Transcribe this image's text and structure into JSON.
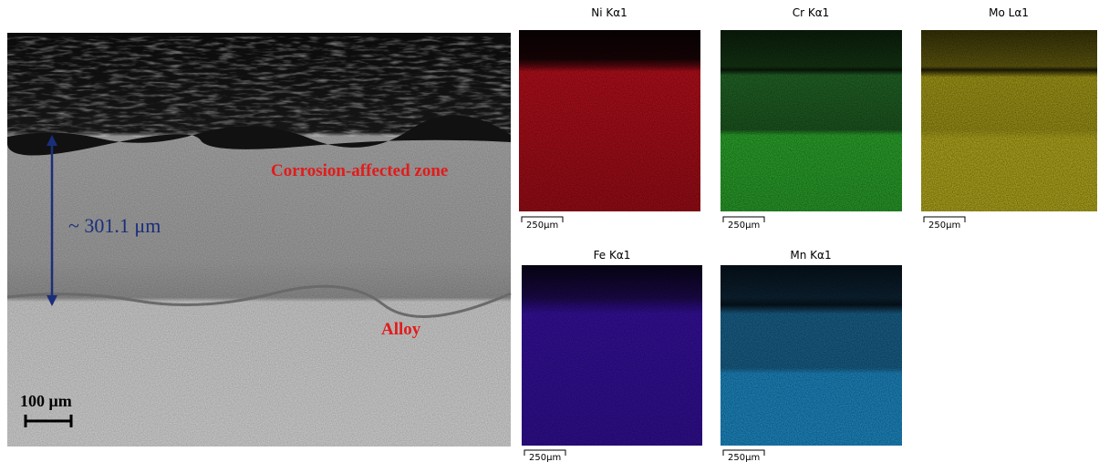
{
  "sem_image": {
    "thickness_label": "~ 301.1 μm",
    "zone_label": "Corrosion-affected zone",
    "alloy_label": "Alloy",
    "scale_label": "100 μm"
  },
  "maps": [
    {
      "title": "Ni Kα1",
      "scale_label": "250μm"
    },
    {
      "title": "Cr Kα1",
      "scale_label": "250μm"
    },
    {
      "title": "Mo Lα1",
      "scale_label": "250μm"
    },
    {
      "title": "Fe Kα1",
      "scale_label": "250μm"
    },
    {
      "title": "Mn Kα1",
      "scale_label": "250μm"
    }
  ]
}
